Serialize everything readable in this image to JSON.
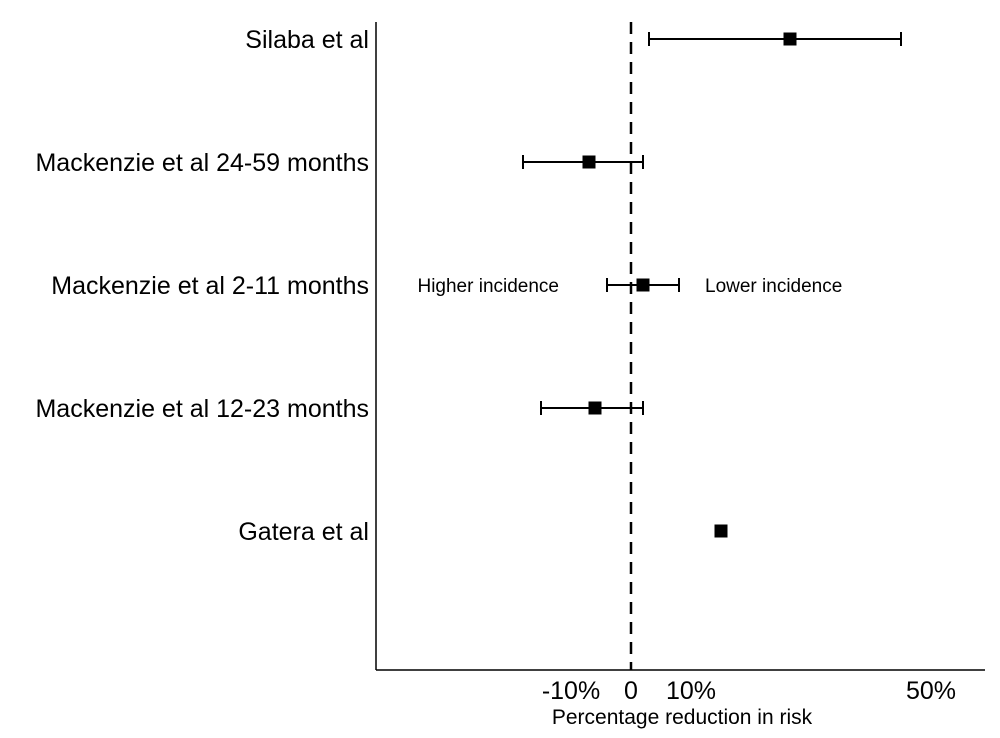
{
  "chart_data": {
    "type": "forest",
    "xlabel": "Percentage reduction in risk",
    "ylabel": "",
    "title": "",
    "x_ticks": [
      {
        "value": -10,
        "label": "-10%"
      },
      {
        "value": 0,
        "label": "0"
      },
      {
        "value": 10,
        "label": "10%"
      },
      {
        "value": 50,
        "label": "50%"
      }
    ],
    "xlim": [
      -42.5,
      59
    ],
    "reference_value": 0,
    "annotations": [
      {
        "text": "Higher incidence",
        "side": "left"
      },
      {
        "text": "Lower incidence",
        "side": "right"
      }
    ],
    "studies": [
      {
        "label": "Silaba et al",
        "estimate": 26.5,
        "lower": 3,
        "upper": 45
      },
      {
        "label": "Mackenzie et al 24-59 months",
        "estimate": -7,
        "lower": -18,
        "upper": 2
      },
      {
        "label": "Mackenzie et al 2-11 months",
        "estimate": 2,
        "lower": -4,
        "upper": 8
      },
      {
        "label": "Mackenzie et al 12-23 months",
        "estimate": -6,
        "lower": -15,
        "upper": 2
      },
      {
        "label": "Gatera et al",
        "estimate": 15,
        "lower": null,
        "upper": null
      }
    ]
  }
}
